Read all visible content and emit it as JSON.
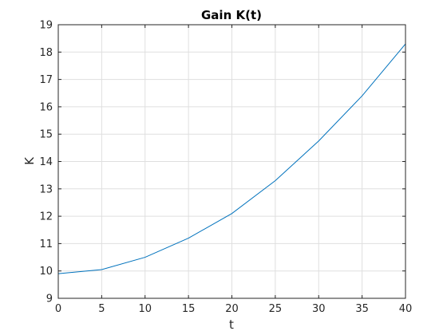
{
  "chart_data": {
    "type": "line",
    "title": "Gain K(t)",
    "xlabel": "t",
    "ylabel": "K",
    "xlim": [
      0,
      40
    ],
    "ylim": [
      9,
      19
    ],
    "xticks": [
      0,
      5,
      10,
      15,
      20,
      25,
      30,
      35,
      40
    ],
    "yticks": [
      9,
      10,
      11,
      12,
      13,
      14,
      15,
      16,
      17,
      18,
      19
    ],
    "grid": true,
    "line_color": "#0072bd",
    "series": [
      {
        "x": [
          0,
          5,
          10,
          15,
          20,
          25,
          30,
          35,
          40
        ],
        "values": [
          9.9,
          10.05,
          10.5,
          11.2,
          12.1,
          13.3,
          14.75,
          16.4,
          18.3
        ]
      }
    ]
  }
}
